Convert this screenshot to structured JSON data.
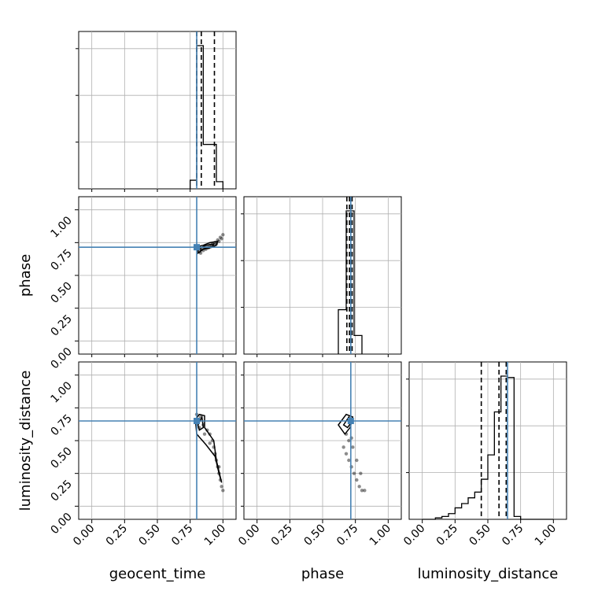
{
  "chart_data": {
    "type": "corner",
    "parameters": [
      "geocent_time",
      "phase",
      "luminosity_distance"
    ],
    "truths": [
      0.8,
      0.715,
      0.65
    ],
    "truth_color": "#4682b4",
    "ticks": [
      0.0,
      0.25,
      0.5,
      0.75,
      1.0
    ],
    "tick_labels": [
      "0.00",
      "0.25",
      "0.50",
      "0.75",
      "1.00"
    ],
    "xlim": [
      -0.1,
      1.1
    ],
    "grid": true,
    "histograms": [
      {
        "parameter": "geocent_time",
        "bin_edges": [
          0.75,
          0.8,
          0.85,
          0.9,
          0.95,
          1.0
        ],
        "counts": [
          0.06,
          1.0,
          0.31,
          0.31,
          0.05
        ],
        "quantiles": [
          0.8,
          0.835,
          0.935
        ]
      },
      {
        "parameter": "phase",
        "bin_edges": [
          0.62,
          0.68,
          0.74,
          0.8
        ],
        "counts": [
          0.31,
          1.0,
          0.13
        ],
        "quantiles": [
          0.685,
          0.705,
          0.725
        ]
      },
      {
        "parameter": "luminosity_distance",
        "bin_edges": [
          0.0,
          0.05,
          0.1,
          0.15,
          0.2,
          0.25,
          0.3,
          0.35,
          0.4,
          0.45,
          0.5,
          0.55,
          0.6,
          0.65,
          0.7,
          0.75,
          0.8,
          0.85,
          0.9,
          0.95,
          1.0
        ],
        "counts": [
          0.0,
          0.0,
          0.01,
          0.02,
          0.04,
          0.08,
          0.11,
          0.15,
          0.19,
          0.28,
          0.45,
          0.75,
          1.0,
          0.99,
          0.02,
          0.0,
          0.0,
          0.0,
          0.0,
          0.0
        ],
        "quantiles": [
          0.45,
          0.585,
          0.64
        ]
      }
    ],
    "scatter": [
      {
        "x": "geocent_time",
        "y": "phase",
        "points": [
          [
            0.82,
            0.68
          ],
          [
            0.84,
            0.7
          ],
          [
            0.86,
            0.71
          ],
          [
            0.88,
            0.72
          ],
          [
            0.9,
            0.73
          ],
          [
            0.92,
            0.74
          ],
          [
            0.94,
            0.75
          ],
          [
            0.96,
            0.77
          ],
          [
            0.98,
            0.79
          ],
          [
            1.0,
            0.81
          ],
          [
            0.81,
            0.72
          ],
          [
            0.83,
            0.67
          ],
          [
            0.85,
            0.69
          ],
          [
            0.87,
            0.7
          ],
          [
            0.89,
            0.71
          ],
          [
            0.91,
            0.72
          ],
          [
            0.93,
            0.73
          ],
          [
            0.95,
            0.74
          ],
          [
            0.97,
            0.76
          ],
          [
            0.99,
            0.78
          ]
        ],
        "contours": [
          [
            [
              0.81,
              0.67
            ],
            [
              0.85,
              0.7
            ],
            [
              0.9,
              0.71
            ],
            [
              0.95,
              0.73
            ],
            [
              0.96,
              0.76
            ],
            [
              0.9,
              0.75
            ],
            [
              0.85,
              0.73
            ],
            [
              0.81,
              0.72
            ]
          ],
          [
            [
              0.83,
              0.69
            ],
            [
              0.87,
              0.71
            ],
            [
              0.92,
              0.72
            ],
            [
              0.93,
              0.74
            ],
            [
              0.87,
              0.73
            ],
            [
              0.83,
              0.71
            ]
          ]
        ]
      },
      {
        "x": "geocent_time",
        "y": "luminosity_distance",
        "points": [
          [
            0.8,
            0.7
          ],
          [
            0.83,
            0.68
          ],
          [
            0.85,
            0.62
          ],
          [
            0.88,
            0.58
          ],
          [
            0.9,
            0.55
          ],
          [
            0.92,
            0.5
          ],
          [
            0.93,
            0.45
          ],
          [
            0.95,
            0.35
          ],
          [
            0.96,
            0.3
          ],
          [
            0.97,
            0.25
          ],
          [
            0.98,
            0.2
          ],
          [
            0.99,
            0.15
          ],
          [
            1.0,
            0.12
          ],
          [
            0.82,
            0.6
          ],
          [
            0.86,
            0.55
          ],
          [
            0.9,
            0.48
          ],
          [
            0.94,
            0.4
          ],
          [
            0.97,
            0.3
          ]
        ],
        "contours": [
          [
            [
              0.79,
              0.66
            ],
            [
              0.82,
              0.7
            ],
            [
              0.86,
              0.69
            ],
            [
              0.86,
              0.6
            ],
            [
              0.93,
              0.5
            ],
            [
              0.95,
              0.35
            ],
            [
              0.99,
              0.18
            ],
            [
              0.97,
              0.25
            ],
            [
              0.94,
              0.38
            ],
            [
              0.87,
              0.47
            ],
            [
              0.8,
              0.55
            ]
          ],
          [
            [
              0.81,
              0.62
            ],
            [
              0.84,
              0.68
            ],
            [
              0.85,
              0.6
            ],
            [
              0.82,
              0.58
            ]
          ]
        ]
      },
      {
        "x": "phase",
        "y": "luminosity_distance",
        "points": [
          [
            0.66,
            0.45
          ],
          [
            0.68,
            0.4
          ],
          [
            0.7,
            0.35
          ],
          [
            0.72,
            0.3
          ],
          [
            0.74,
            0.25
          ],
          [
            0.76,
            0.2
          ],
          [
            0.78,
            0.15
          ],
          [
            0.8,
            0.12
          ],
          [
            0.82,
            0.12
          ],
          [
            0.7,
            0.5
          ],
          [
            0.73,
            0.45
          ],
          [
            0.76,
            0.35
          ],
          [
            0.79,
            0.25
          ],
          [
            0.68,
            0.55
          ],
          [
            0.72,
            0.52
          ]
        ],
        "contours": [
          [
            [
              0.62,
              0.62
            ],
            [
              0.68,
              0.7
            ],
            [
              0.73,
              0.68
            ],
            [
              0.71,
              0.6
            ],
            [
              0.67,
              0.55
            ]
          ],
          [
            [
              0.66,
              0.62
            ],
            [
              0.7,
              0.68
            ],
            [
              0.72,
              0.64
            ],
            [
              0.69,
              0.6
            ]
          ]
        ]
      }
    ]
  }
}
